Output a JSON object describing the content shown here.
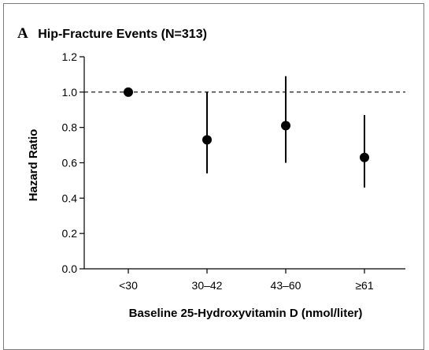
{
  "panel": {
    "letter": "A",
    "title": "Hip-Fracture Events (N=313)"
  },
  "chart_data": {
    "type": "scatter",
    "title": "Hip-Fracture Events (N=313)",
    "xlabel": "Baseline 25-Hydroxyvitamin D (nmol/liter)",
    "ylabel": "Hazard Ratio",
    "ylim": [
      0.0,
      1.2
    ],
    "yticks": [
      "0.0",
      "0.2",
      "0.4",
      "0.6",
      "0.8",
      "1.0",
      "1.2"
    ],
    "ytick_values": [
      0.0,
      0.2,
      0.4,
      0.6,
      0.8,
      1.0,
      1.2
    ],
    "categories": [
      "<30",
      "30–42",
      "43–60",
      "≥61"
    ],
    "values": [
      1.0,
      0.73,
      0.81,
      0.63
    ],
    "ci_lower": [
      null,
      0.54,
      0.6,
      0.46
    ],
    "ci_upper": [
      null,
      1.0,
      1.09,
      0.87
    ],
    "reference_line": 1.0,
    "grid": false
  }
}
